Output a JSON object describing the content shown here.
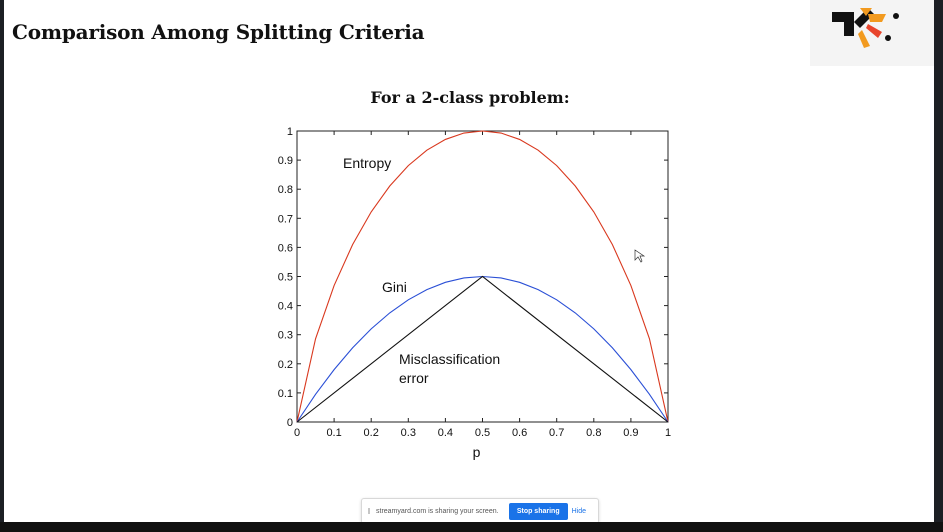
{
  "slide": {
    "title": "Comparison Among Splitting Criteria",
    "subtitle": "For a 2-class problem:"
  },
  "chart_data": {
    "type": "line",
    "xlabel": "p",
    "ylabel": "",
    "xlim": [
      0,
      1
    ],
    "ylim": [
      0,
      1
    ],
    "xticks": [
      "0",
      "0.1",
      "0.2",
      "0.3",
      "0.4",
      "0.5",
      "0.6",
      "0.7",
      "0.8",
      "0.9",
      "1"
    ],
    "yticks": [
      "0",
      "0.1",
      "0.2",
      "0.3",
      "0.4",
      "0.5",
      "0.6",
      "0.7",
      "0.8",
      "0.9",
      "1"
    ],
    "grid": false,
    "series": [
      {
        "name": "Entropy",
        "color": "#d9381e",
        "x": [
          0,
          0.05,
          0.1,
          0.15,
          0.2,
          0.25,
          0.3,
          0.35,
          0.4,
          0.45,
          0.5,
          0.55,
          0.6,
          0.65,
          0.7,
          0.75,
          0.8,
          0.85,
          0.9,
          0.95,
          1
        ],
        "y": [
          0,
          0.286,
          0.469,
          0.61,
          0.722,
          0.811,
          0.881,
          0.934,
          0.971,
          0.993,
          1,
          0.993,
          0.971,
          0.934,
          0.881,
          0.811,
          0.722,
          0.61,
          0.469,
          0.286,
          0
        ]
      },
      {
        "name": "Gini",
        "color": "#2a4fd6",
        "x": [
          0,
          0.05,
          0.1,
          0.15,
          0.2,
          0.25,
          0.3,
          0.35,
          0.4,
          0.45,
          0.5,
          0.55,
          0.6,
          0.65,
          0.7,
          0.75,
          0.8,
          0.85,
          0.9,
          0.95,
          1
        ],
        "y": [
          0,
          0.095,
          0.18,
          0.255,
          0.32,
          0.375,
          0.42,
          0.455,
          0.48,
          0.495,
          0.5,
          0.495,
          0.48,
          0.455,
          0.42,
          0.375,
          0.32,
          0.255,
          0.18,
          0.095,
          0
        ]
      },
      {
        "name": "Misclassification error",
        "color": "#111111",
        "x": [
          0,
          0.5,
          1
        ],
        "y": [
          0,
          0.5,
          0
        ]
      }
    ],
    "annotations": [
      "Entropy",
      "Gini",
      "Misclassification",
      "error"
    ]
  },
  "share_bar": {
    "text": "streamyard.com is sharing your screen.",
    "stop_label": "Stop sharing",
    "hide_label": "Hide"
  }
}
